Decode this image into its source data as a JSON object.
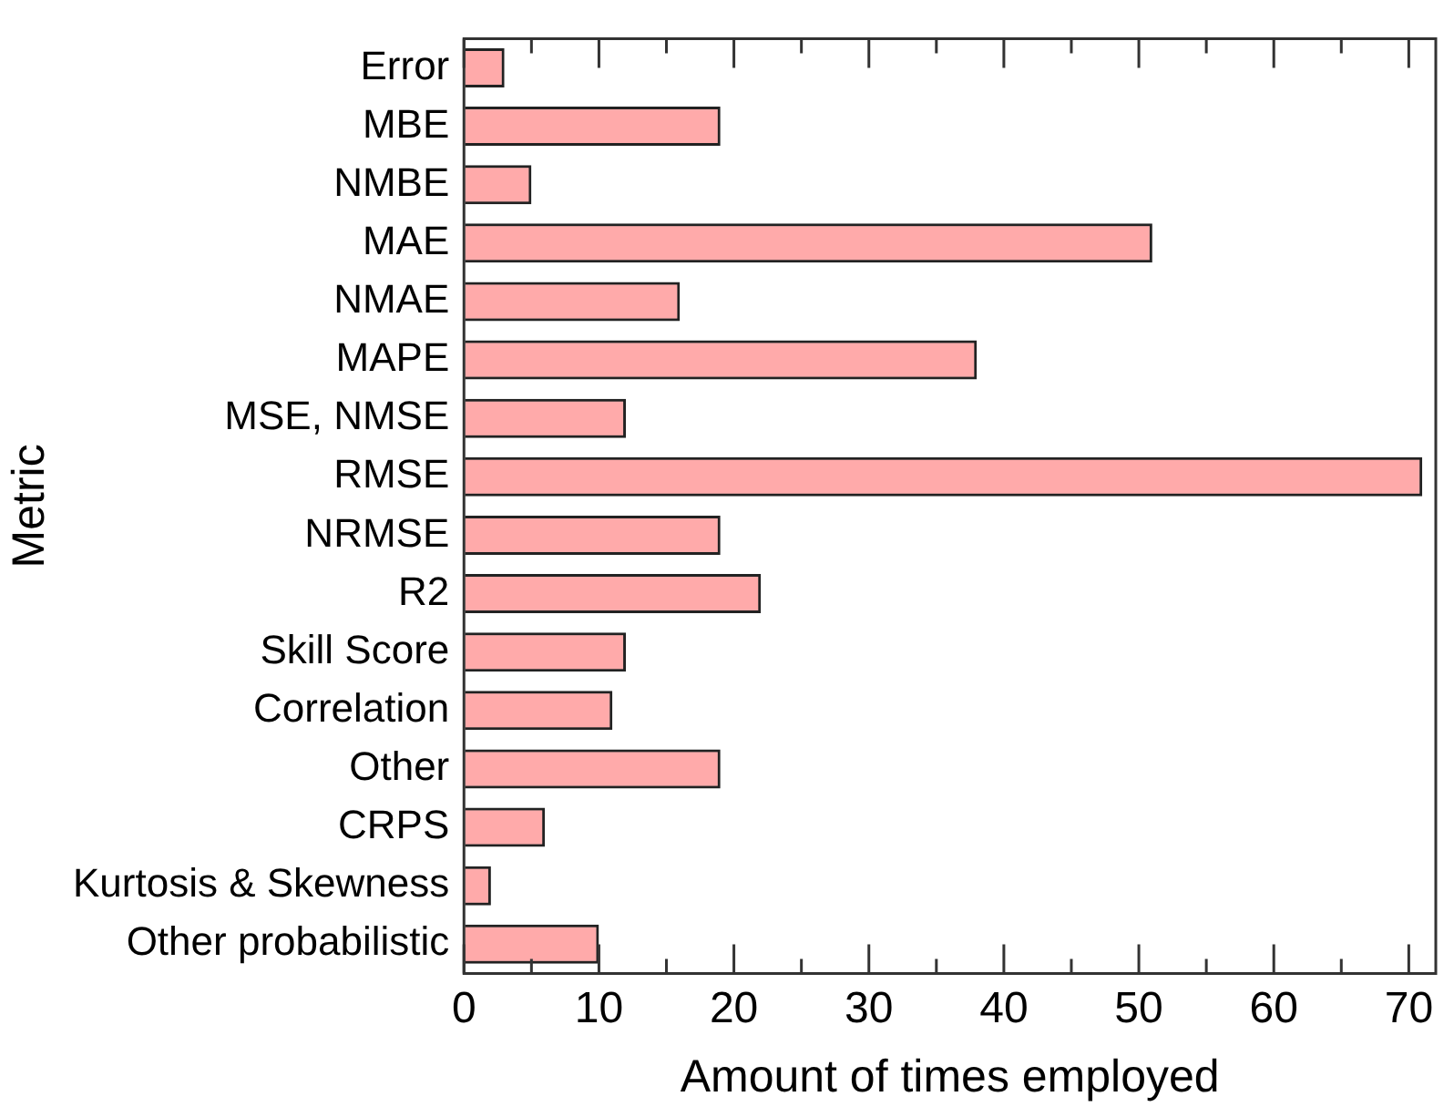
{
  "chart_data": {
    "type": "bar",
    "orientation": "horizontal",
    "xlabel": "Amount of times employed",
    "ylabel": "Metric",
    "categories": [
      "Error",
      "MBE",
      "NMBE",
      "MAE",
      "NMAE",
      "MAPE",
      "MSE, NMSE",
      "RMSE",
      "NRMSE",
      "R2",
      "Skill Score",
      "Correlation",
      "Other",
      "CRPS",
      "Kurtosis & Skewness",
      "Other probabilistic"
    ],
    "values": [
      3,
      19,
      5,
      51,
      16,
      38,
      12,
      71,
      19,
      22,
      12,
      11,
      19,
      6,
      2,
      10
    ],
    "color": "#ff0000",
    "xlim": [
      0,
      72
    ],
    "xticks": [
      0,
      {
        "value": 5,
        "label": null
      },
      10,
      {
        "value": 15,
        "label": null
      },
      20,
      {
        "value": 25,
        "label": null
      },
      30,
      {
        "value": 35,
        "label": null
      },
      40,
      {
        "value": 45,
        "label": null
      },
      50,
      {
        "value": 55,
        "label": null
      },
      60,
      {
        "value": 65,
        "label": null
      },
      70
    ],
    "grid": false,
    "legend": false
  }
}
